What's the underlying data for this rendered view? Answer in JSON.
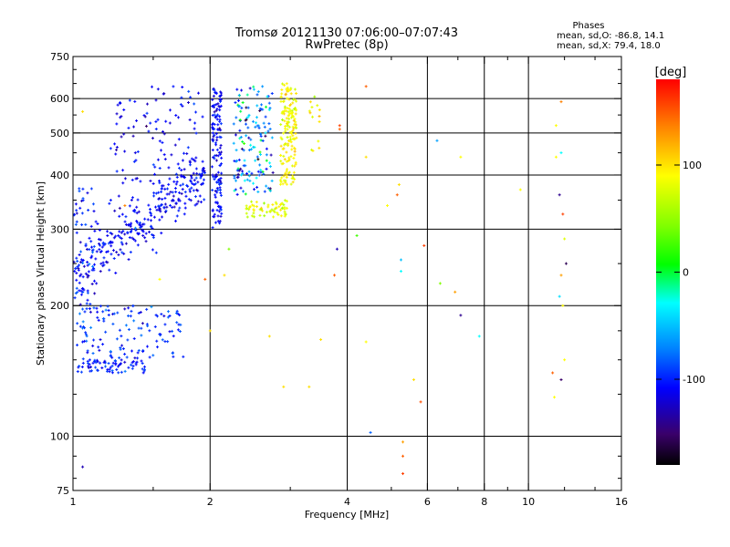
{
  "chart_data": {
    "type": "scatter",
    "title": "Tromsø 20121130 07:06:00–07:07:43",
    "subtitle": "RwPretec (8p)",
    "phases_box": {
      "heading": "Phases",
      "line1": "mean, sd,O: -86.8, 14.1",
      "line2": "mean, sd,X:  79.4, 18.0"
    },
    "xlabel": "Frequency [MHz]",
    "ylabel": "Stationary phase Virtual Height [km]",
    "xscale": "log",
    "yscale": "log",
    "xlim": [
      1,
      16
    ],
    "ylim": [
      75,
      750
    ],
    "x_ticks": [
      1,
      2,
      4,
      6,
      8,
      10,
      16
    ],
    "x_tick_labels": [
      "1",
      "2",
      "4",
      "6",
      "8",
      "10",
      "16"
    ],
    "x_minor_ticks": [
      1.5,
      3,
      5,
      7,
      9,
      12,
      14
    ],
    "y_ticks": [
      75,
      100,
      200,
      300,
      400,
      500,
      600,
      750
    ],
    "y_tick_labels": [
      "75",
      "100",
      "200",
      "300",
      "400",
      "500",
      "600",
      "750"
    ],
    "y_minor_ticks": [
      80,
      90,
      125,
      150,
      175,
      250,
      350,
      450,
      550,
      650,
      700
    ],
    "grid": true,
    "colorbar": {
      "label": "[deg]",
      "range": [
        -180,
        180
      ],
      "ticks": [
        100,
        0,
        -100
      ],
      "tick_labels": [
        "100",
        "0",
        "-100"
      ]
    },
    "clusters": [
      {
        "name": "o-trace",
        "x": [
          1.0,
          1.95
        ],
        "y_model": "ofit",
        "count": 300,
        "phase": -90,
        "phase_sd": 10
      },
      {
        "name": "o-trace-lower",
        "x": [
          1.0,
          1.12
        ],
        "y": [
          200,
          380
        ],
        "count": 60,
        "phase": -85,
        "phase_sd": 15
      },
      {
        "name": "o-upper",
        "x": [
          1.2,
          1.95
        ],
        "y": [
          330,
          640
        ],
        "count": 110,
        "phase": -90,
        "phase_sd": 10
      },
      {
        "name": "o-column-2.1",
        "x": [
          2.02,
          2.12
        ],
        "y": [
          300,
          640
        ],
        "count": 140,
        "phase": -90,
        "phase_sd": 12
      },
      {
        "name": "f1-bottomside",
        "x": [
          1.02,
          1.45
        ],
        "y": [
          140,
          150
        ],
        "count": 70,
        "phase": -80,
        "phase_sd": 12
      },
      {
        "name": "f1-diffuse",
        "x": [
          1.02,
          1.75
        ],
        "y": [
          150,
          200
        ],
        "count": 130,
        "phase": -78,
        "phase_sd": 15
      },
      {
        "name": "mixed-2.3-2.7",
        "x": [
          2.25,
          2.75
        ],
        "y": [
          360,
          640
        ],
        "count": 150,
        "phase": -50,
        "phase_sd": 40
      },
      {
        "name": "x-trace-low",
        "x": [
          2.4,
          2.95
        ],
        "y": [
          320,
          350
        ],
        "count": 60,
        "phase": 90,
        "phase_sd": 12
      },
      {
        "name": "x-trace-column",
        "x": [
          2.85,
          3.1
        ],
        "y": [
          380,
          650
        ],
        "count": 160,
        "phase": 100,
        "phase_sd": 10
      },
      {
        "name": "x-trace-extra",
        "x": [
          3.3,
          3.5
        ],
        "y": [
          450,
          620
        ],
        "count": 14,
        "phase": 95,
        "phase_sd": 10
      }
    ],
    "scatter_points": [
      {
        "x": 4.4,
        "y": 640,
        "phase": 150
      },
      {
        "x": 3.85,
        "y": 520,
        "phase": 160
      },
      {
        "x": 3.85,
        "y": 510,
        "phase": 150
      },
      {
        "x": 4.4,
        "y": 440,
        "phase": 110
      },
      {
        "x": 5.2,
        "y": 380,
        "phase": 110
      },
      {
        "x": 5.15,
        "y": 360,
        "phase": 150
      },
      {
        "x": 4.9,
        "y": 340,
        "phase": 100
      },
      {
        "x": 4.2,
        "y": 290,
        "phase": 40
      },
      {
        "x": 3.8,
        "y": 270,
        "phase": -110
      },
      {
        "x": 3.75,
        "y": 235,
        "phase": 150
      },
      {
        "x": 5.25,
        "y": 255,
        "phase": -30
      },
      {
        "x": 5.25,
        "y": 240,
        "phase": -10
      },
      {
        "x": 5.9,
        "y": 275,
        "phase": 160
      },
      {
        "x": 6.4,
        "y": 225,
        "phase": 60
      },
      {
        "x": 6.9,
        "y": 215,
        "phase": 130
      },
      {
        "x": 6.3,
        "y": 480,
        "phase": -40
      },
      {
        "x": 7.1,
        "y": 440,
        "phase": 100
      },
      {
        "x": 7.1,
        "y": 190,
        "phase": -120
      },
      {
        "x": 9.6,
        "y": 370,
        "phase": 100
      },
      {
        "x": 11.8,
        "y": 590,
        "phase": 140
      },
      {
        "x": 11.5,
        "y": 520,
        "phase": 100
      },
      {
        "x": 11.8,
        "y": 450,
        "phase": -10
      },
      {
        "x": 11.5,
        "y": 440,
        "phase": 100
      },
      {
        "x": 11.7,
        "y": 360,
        "phase": -120
      },
      {
        "x": 11.9,
        "y": 325,
        "phase": 160
      },
      {
        "x": 12.0,
        "y": 285,
        "phase": 90
      },
      {
        "x": 12.1,
        "y": 250,
        "phase": -140
      },
      {
        "x": 11.8,
        "y": 235,
        "phase": 130
      },
      {
        "x": 11.7,
        "y": 210,
        "phase": -20
      },
      {
        "x": 11.9,
        "y": 200,
        "phase": 100
      },
      {
        "x": 12.0,
        "y": 150,
        "phase": 100
      },
      {
        "x": 11.3,
        "y": 140,
        "phase": 150
      },
      {
        "x": 11.8,
        "y": 135,
        "phase": -130
      },
      {
        "x": 11.4,
        "y": 123,
        "phase": 100
      },
      {
        "x": 4.4,
        "y": 165,
        "phase": 100
      },
      {
        "x": 4.5,
        "y": 102,
        "phase": -60
      },
      {
        "x": 5.3,
        "y": 97,
        "phase": 130
      },
      {
        "x": 5.3,
        "y": 90,
        "phase": 150
      },
      {
        "x": 5.3,
        "y": 82,
        "phase": 160
      },
      {
        "x": 5.8,
        "y": 120,
        "phase": 155
      },
      {
        "x": 5.6,
        "y": 135,
        "phase": 110
      },
      {
        "x": 7.8,
        "y": 170,
        "phase": -10
      },
      {
        "x": 2.7,
        "y": 170,
        "phase": 110
      },
      {
        "x": 2.9,
        "y": 130,
        "phase": 110
      },
      {
        "x": 3.5,
        "y": 167,
        "phase": 110
      },
      {
        "x": 3.3,
        "y": 130,
        "phase": 110
      },
      {
        "x": 2.0,
        "y": 175,
        "phase": 110
      },
      {
        "x": 1.05,
        "y": 85,
        "phase": -110
      },
      {
        "x": 1.0,
        "y": 104,
        "phase": 10
      },
      {
        "x": 1.0,
        "y": 96,
        "phase": 140
      },
      {
        "x": 1.05,
        "y": 560,
        "phase": 110
      },
      {
        "x": 1.3,
        "y": 340,
        "phase": 140
      },
      {
        "x": 1.55,
        "y": 230,
        "phase": 100
      },
      {
        "x": 1.95,
        "y": 230,
        "phase": 150
      },
      {
        "x": 2.15,
        "y": 235,
        "phase": 110
      },
      {
        "x": 2.2,
        "y": 270,
        "phase": 60
      }
    ]
  }
}
